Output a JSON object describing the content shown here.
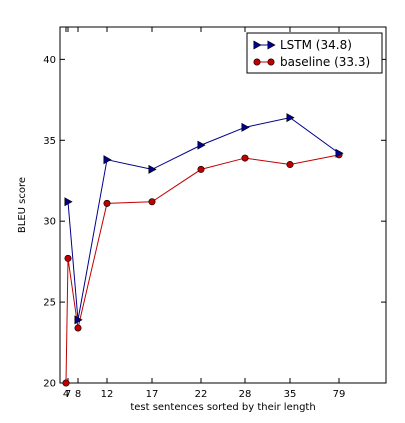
{
  "chart_data": {
    "type": "line",
    "xlabel": "test sentences sorted by their length",
    "ylabel": "BLEU score",
    "ylim": [
      20,
      42
    ],
    "x_tick_labels": [
      "4",
      "7",
      "8",
      "12",
      "17",
      "22",
      "28",
      "35",
      "79"
    ],
    "y_ticks": [
      20,
      25,
      30,
      35,
      40
    ],
    "grid": false,
    "legend_position": "top-right",
    "series": [
      {
        "name": "LSTM  (34.8)",
        "color": "#00008b",
        "marker": "triangle-right",
        "values": [
          null,
          31.2,
          23.9,
          33.8,
          33.2,
          34.7,
          35.8,
          36.4,
          34.2
        ]
      },
      {
        "name": "baseline (33.3)",
        "color": "#c00000",
        "marker": "circle",
        "values": [
          20.0,
          27.7,
          23.4,
          31.1,
          31.2,
          33.2,
          33.9,
          33.5,
          34.1
        ]
      }
    ]
  }
}
